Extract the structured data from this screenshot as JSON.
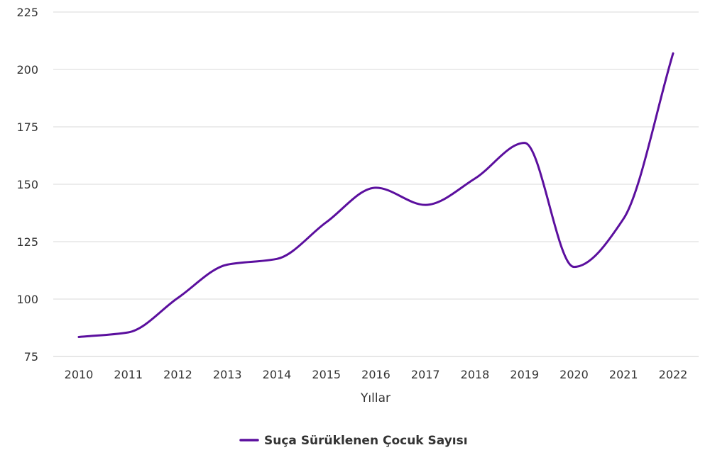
{
  "chart_data": {
    "type": "line",
    "title": "",
    "xlabel": "Yıllar",
    "ylabel": "",
    "categories": [
      "2010",
      "2011",
      "2012",
      "2013",
      "2014",
      "2015",
      "2016",
      "2017",
      "2018",
      "2019",
      "2020",
      "2021",
      "2022"
    ],
    "series": [
      {
        "name": "Suça Sürüklenen Çocuk Sayısı",
        "values": [
          83.5,
          85.5,
          100.5,
          115,
          117.5,
          133.5,
          148.5,
          141,
          152.5,
          168,
          114,
          135,
          207
        ],
        "color": "#5b0f9e"
      }
    ],
    "yticks": [
      "75",
      "100",
      "125",
      "150",
      "175",
      "200",
      "225"
    ],
    "ylim": [
      75,
      225
    ],
    "grid": true,
    "smooth": true,
    "legend_position": "bottom-center",
    "colors": {
      "line": "#5b0f9e",
      "grid": "#d9d9d9",
      "text": "#333333"
    }
  }
}
